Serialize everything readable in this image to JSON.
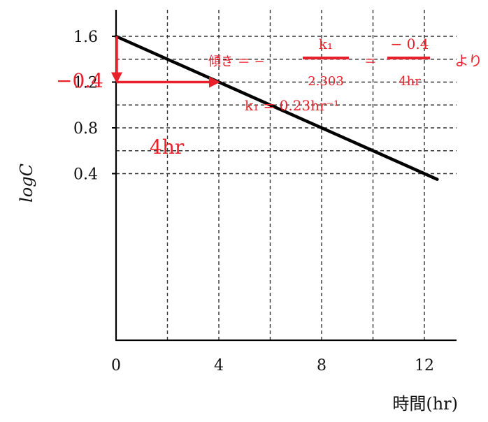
{
  "chart_data": {
    "type": "line",
    "xlabel": "時間(hr)",
    "ylabel": "logC",
    "xlim": [
      0,
      13
    ],
    "ylim": [
      0.35,
      1.7
    ],
    "x_ticks": [
      "0",
      "4",
      "8",
      "12"
    ],
    "x_tick_values": [
      0,
      4,
      8,
      12
    ],
    "y_ticks": [
      "0.4",
      "0.8",
      "1.2",
      "1.6"
    ],
    "y_tick_values": [
      0.4,
      0.8,
      1.2,
      1.6
    ],
    "grid": true,
    "grid_x": [
      2,
      4,
      6,
      8,
      10,
      12
    ],
    "grid_y": [
      0.4,
      0.6,
      0.8,
      1.0,
      1.2,
      1.4,
      1.6
    ],
    "series": [
      {
        "x": [
          0,
          12.5
        ],
        "y": [
          1.6,
          0.35
        ]
      }
    ],
    "annotations": {
      "delta_y_label": "−0.4",
      "delta_x_label": "4hr",
      "arrow_down": {
        "x": 0,
        "y_from": 1.6,
        "y_to": 1.2
      },
      "arrow_right": {
        "y": 1.2,
        "x_from": 0,
        "x_to": 4
      },
      "slope_prefix": "傾き ＝ −",
      "frac1_num": "k₁",
      "frac1_den": "2.303",
      "equals": "＝",
      "frac2_num": "− 0.4",
      "frac2_den": "4hr",
      "suffix": "より",
      "result": "k₁ = 0.23hr⁻¹"
    },
    "colors": {
      "line": "#000000",
      "annotation": "#e8202a",
      "grid": "#333333"
    }
  }
}
